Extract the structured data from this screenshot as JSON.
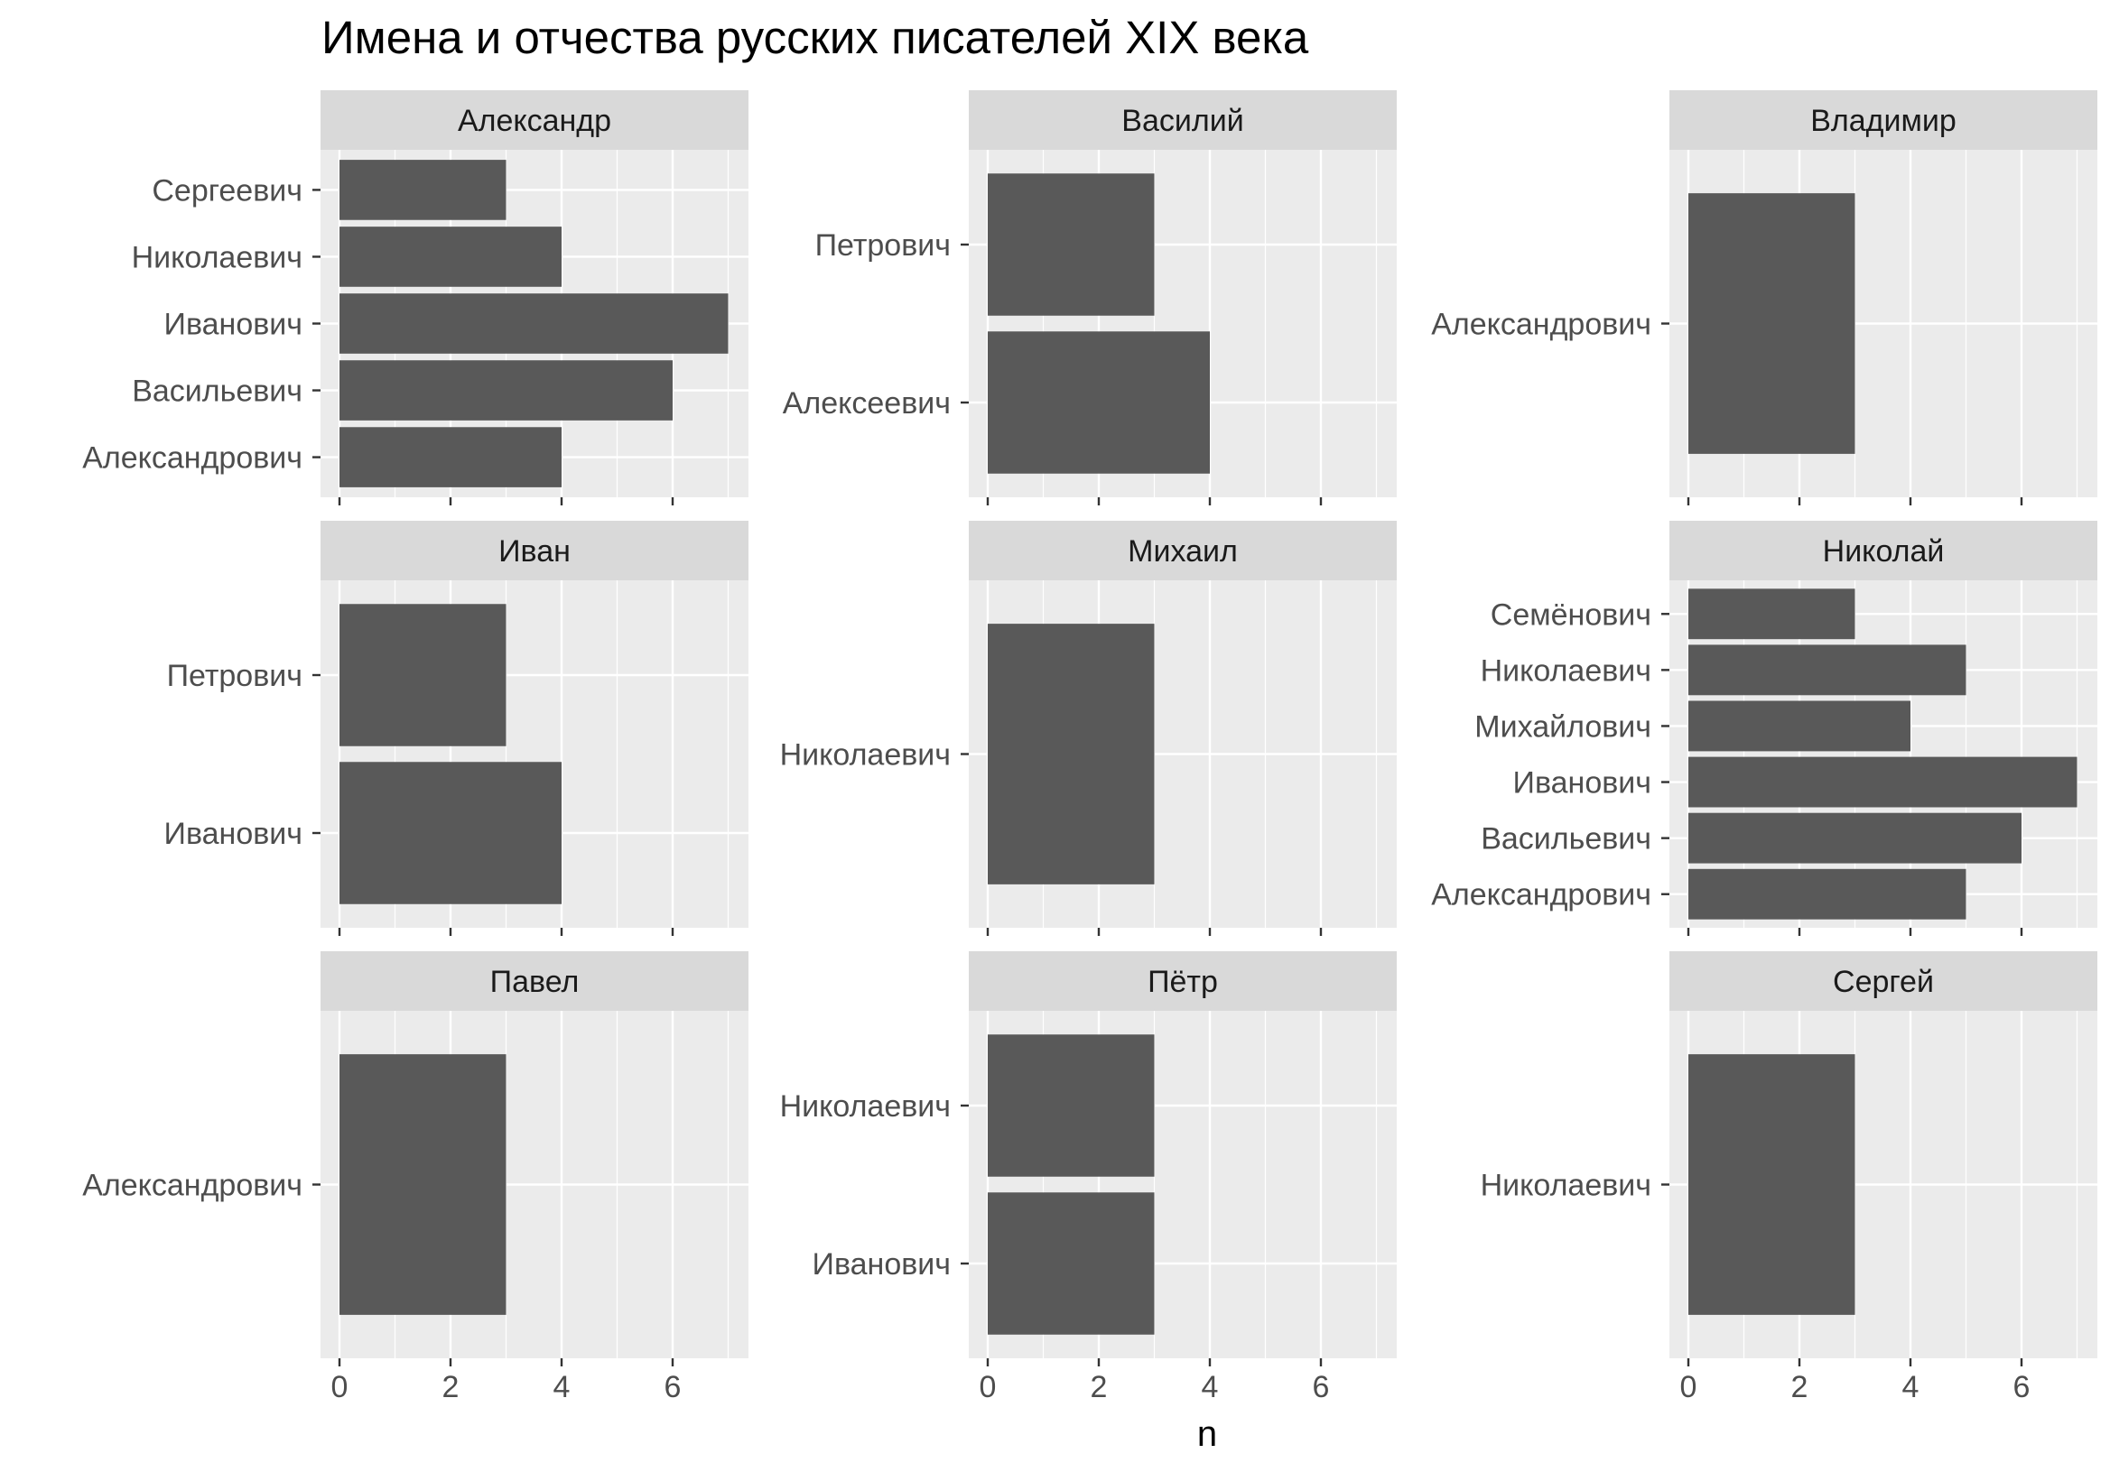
{
  "chart_data": {
    "type": "bar",
    "orientation": "horizontal",
    "title": "Имена и отчества русских писателей XIX века",
    "xlabel": "n",
    "ylabel": "",
    "xlim": [
      0,
      7.35
    ],
    "x_ticks": [
      0,
      2,
      4,
      6
    ],
    "grid": true,
    "facets": [
      {
        "name": "Александр",
        "categories": [
          "Александрович",
          "Васильевич",
          "Иванович",
          "Николаевич",
          "Сергеевич"
        ],
        "values": [
          4,
          6,
          7,
          4,
          3
        ]
      },
      {
        "name": "Василий",
        "categories": [
          "Алексеевич",
          "Петрович"
        ],
        "values": [
          4,
          3
        ]
      },
      {
        "name": "Владимир",
        "categories": [
          "Александрович"
        ],
        "values": [
          3
        ]
      },
      {
        "name": "Иван",
        "categories": [
          "Иванович",
          "Петрович"
        ],
        "values": [
          4,
          3
        ]
      },
      {
        "name": "Михаил",
        "categories": [
          "Николаевич"
        ],
        "values": [
          3
        ]
      },
      {
        "name": "Николай",
        "categories": [
          "Александрович",
          "Васильевич",
          "Иванович",
          "Михайлович",
          "Николаевич",
          "Семёнович"
        ],
        "values": [
          5,
          6,
          7,
          4,
          5,
          3
        ]
      },
      {
        "name": "Павел",
        "categories": [
          "Александрович"
        ],
        "values": [
          3
        ]
      },
      {
        "name": "Пётр",
        "categories": [
          "Иванович",
          "Николаевич"
        ],
        "values": [
          3,
          3
        ]
      },
      {
        "name": "Сергей",
        "categories": [
          "Николаевич"
        ],
        "values": [
          3
        ]
      }
    ]
  },
  "colors": {
    "panel_background": "#ebebeb",
    "strip_background": "#d9d9d9",
    "bar_fill": "#595959",
    "gridline": "#ffffff",
    "axis_text": "#4d4d4d"
  }
}
